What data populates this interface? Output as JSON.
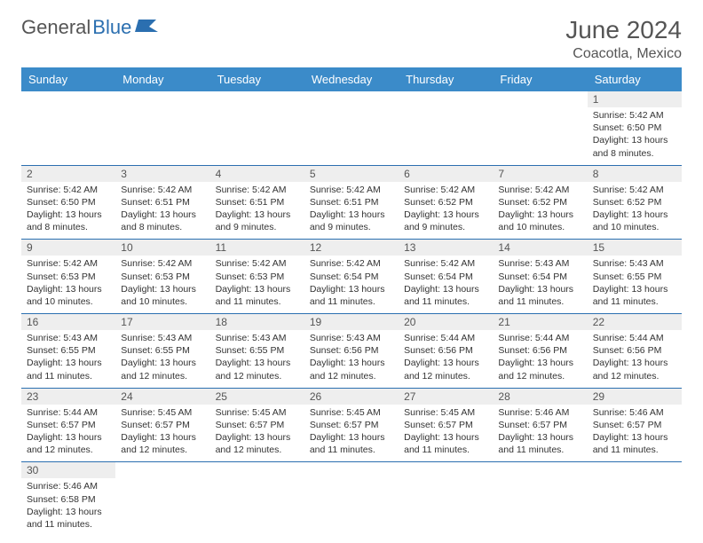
{
  "brand": {
    "word1": "General",
    "word2": "Blue",
    "logo_color": "#2b6fb0"
  },
  "title": "June 2024",
  "location": "Coacotla, Mexico",
  "colors": {
    "header_bg": "#3b8bc9",
    "header_fg": "#ffffff",
    "rule": "#2b6fb0",
    "daynum_bg": "#eeeeee",
    "text": "#333333",
    "muted": "#555555"
  },
  "weekdays": [
    "Sunday",
    "Monday",
    "Tuesday",
    "Wednesday",
    "Thursday",
    "Friday",
    "Saturday"
  ],
  "weeks": [
    [
      null,
      null,
      null,
      null,
      null,
      null,
      {
        "n": "1",
        "sr": "5:42 AM",
        "ss": "6:50 PM",
        "dl": "13 hours and 8 minutes."
      }
    ],
    [
      {
        "n": "2",
        "sr": "5:42 AM",
        "ss": "6:50 PM",
        "dl": "13 hours and 8 minutes."
      },
      {
        "n": "3",
        "sr": "5:42 AM",
        "ss": "6:51 PM",
        "dl": "13 hours and 8 minutes."
      },
      {
        "n": "4",
        "sr": "5:42 AM",
        "ss": "6:51 PM",
        "dl": "13 hours and 9 minutes."
      },
      {
        "n": "5",
        "sr": "5:42 AM",
        "ss": "6:51 PM",
        "dl": "13 hours and 9 minutes."
      },
      {
        "n": "6",
        "sr": "5:42 AM",
        "ss": "6:52 PM",
        "dl": "13 hours and 9 minutes."
      },
      {
        "n": "7",
        "sr": "5:42 AM",
        "ss": "6:52 PM",
        "dl": "13 hours and 10 minutes."
      },
      {
        "n": "8",
        "sr": "5:42 AM",
        "ss": "6:52 PM",
        "dl": "13 hours and 10 minutes."
      }
    ],
    [
      {
        "n": "9",
        "sr": "5:42 AM",
        "ss": "6:53 PM",
        "dl": "13 hours and 10 minutes."
      },
      {
        "n": "10",
        "sr": "5:42 AM",
        "ss": "6:53 PM",
        "dl": "13 hours and 10 minutes."
      },
      {
        "n": "11",
        "sr": "5:42 AM",
        "ss": "6:53 PM",
        "dl": "13 hours and 11 minutes."
      },
      {
        "n": "12",
        "sr": "5:42 AM",
        "ss": "6:54 PM",
        "dl": "13 hours and 11 minutes."
      },
      {
        "n": "13",
        "sr": "5:42 AM",
        "ss": "6:54 PM",
        "dl": "13 hours and 11 minutes."
      },
      {
        "n": "14",
        "sr": "5:43 AM",
        "ss": "6:54 PM",
        "dl": "13 hours and 11 minutes."
      },
      {
        "n": "15",
        "sr": "5:43 AM",
        "ss": "6:55 PM",
        "dl": "13 hours and 11 minutes."
      }
    ],
    [
      {
        "n": "16",
        "sr": "5:43 AM",
        "ss": "6:55 PM",
        "dl": "13 hours and 11 minutes."
      },
      {
        "n": "17",
        "sr": "5:43 AM",
        "ss": "6:55 PM",
        "dl": "13 hours and 12 minutes."
      },
      {
        "n": "18",
        "sr": "5:43 AM",
        "ss": "6:55 PM",
        "dl": "13 hours and 12 minutes."
      },
      {
        "n": "19",
        "sr": "5:43 AM",
        "ss": "6:56 PM",
        "dl": "13 hours and 12 minutes."
      },
      {
        "n": "20",
        "sr": "5:44 AM",
        "ss": "6:56 PM",
        "dl": "13 hours and 12 minutes."
      },
      {
        "n": "21",
        "sr": "5:44 AM",
        "ss": "6:56 PM",
        "dl": "13 hours and 12 minutes."
      },
      {
        "n": "22",
        "sr": "5:44 AM",
        "ss": "6:56 PM",
        "dl": "13 hours and 12 minutes."
      }
    ],
    [
      {
        "n": "23",
        "sr": "5:44 AM",
        "ss": "6:57 PM",
        "dl": "13 hours and 12 minutes."
      },
      {
        "n": "24",
        "sr": "5:45 AM",
        "ss": "6:57 PM",
        "dl": "13 hours and 12 minutes."
      },
      {
        "n": "25",
        "sr": "5:45 AM",
        "ss": "6:57 PM",
        "dl": "13 hours and 12 minutes."
      },
      {
        "n": "26",
        "sr": "5:45 AM",
        "ss": "6:57 PM",
        "dl": "13 hours and 11 minutes."
      },
      {
        "n": "27",
        "sr": "5:45 AM",
        "ss": "6:57 PM",
        "dl": "13 hours and 11 minutes."
      },
      {
        "n": "28",
        "sr": "5:46 AM",
        "ss": "6:57 PM",
        "dl": "13 hours and 11 minutes."
      },
      {
        "n": "29",
        "sr": "5:46 AM",
        "ss": "6:57 PM",
        "dl": "13 hours and 11 minutes."
      }
    ],
    [
      {
        "n": "30",
        "sr": "5:46 AM",
        "ss": "6:58 PM",
        "dl": "13 hours and 11 minutes."
      },
      null,
      null,
      null,
      null,
      null,
      null
    ]
  ],
  "labels": {
    "sunrise": "Sunrise:",
    "sunset": "Sunset:",
    "daylight": "Daylight:"
  }
}
